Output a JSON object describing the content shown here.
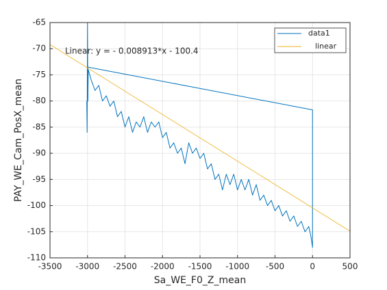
{
  "chart_data": {
    "type": "line",
    "xlabel": "Sa_WE_F0_Z_mean",
    "ylabel": "PAY_WE_Cam_PosX_mean",
    "annotation": "Linear:  y = - 0.008913*x - 100.4",
    "xlim": [
      -3500,
      500
    ],
    "xticks": [
      -3500,
      -3000,
      -2500,
      -2000,
      -1500,
      -1000,
      -500,
      0,
      500
    ],
    "ylim": [
      -110,
      -65
    ],
    "yticks": [
      -65,
      -70,
      -75,
      -80,
      -85,
      -90,
      -95,
      -100,
      -105,
      -110
    ],
    "grid": true,
    "legend": "top-right",
    "series": [
      {
        "name": "data1",
        "color": "#0072BD",
        "x": [
          -3010,
          -3005,
          -3000,
          -2995,
          -2990,
          -2950,
          -2900,
          -2850,
          -2800,
          -2750,
          -2700,
          -2650,
          -2600,
          -2550,
          -2500,
          -2450,
          -2400,
          -2350,
          -2300,
          -2250,
          -2200,
          -2150,
          -2100,
          -2050,
          -2000,
          -1950,
          -1900,
          -1850,
          -1800,
          -1750,
          -1700,
          -1650,
          -1600,
          -1550,
          -1500,
          -1450,
          -1400,
          -1350,
          -1300,
          -1250,
          -1200,
          -1150,
          -1100,
          -1050,
          -1000,
          -950,
          -900,
          -850,
          -800,
          -750,
          -700,
          -650,
          -600,
          -550,
          -500,
          -450,
          -400,
          -350,
          -300,
          -250,
          -200,
          -150,
          -100,
          -50,
          -20,
          0,
          0,
          0,
          0,
          -3000
        ],
        "values": [
          -80,
          -86,
          -65,
          -80,
          -74,
          -76,
          -78,
          -77,
          -80,
          -79,
          -81,
          -80,
          -83,
          -82,
          -85,
          -83,
          -86,
          -84,
          -85,
          -83,
          -86,
          -84,
          -85,
          -84,
          -87,
          -86,
          -89,
          -88,
          -90,
          -89,
          -92,
          -88,
          -90,
          -89,
          -91,
          -90,
          -93,
          -92,
          -95,
          -94,
          -97,
          -94,
          -96,
          -94,
          -97,
          -95,
          -97,
          -95,
          -98,
          -96,
          -99,
          -98,
          -100,
          -99,
          -101,
          -100,
          -102,
          -101,
          -103,
          -102,
          -104,
          -103,
          -105,
          -104,
          -106,
          -108,
          -89,
          -100,
          -81.7,
          -73.5
        ]
      },
      {
        "name": "linear",
        "color": "#EDB120",
        "x": [
          -3500,
          500
        ],
        "values": [
          -69.2,
          -104.9
        ]
      }
    ]
  }
}
